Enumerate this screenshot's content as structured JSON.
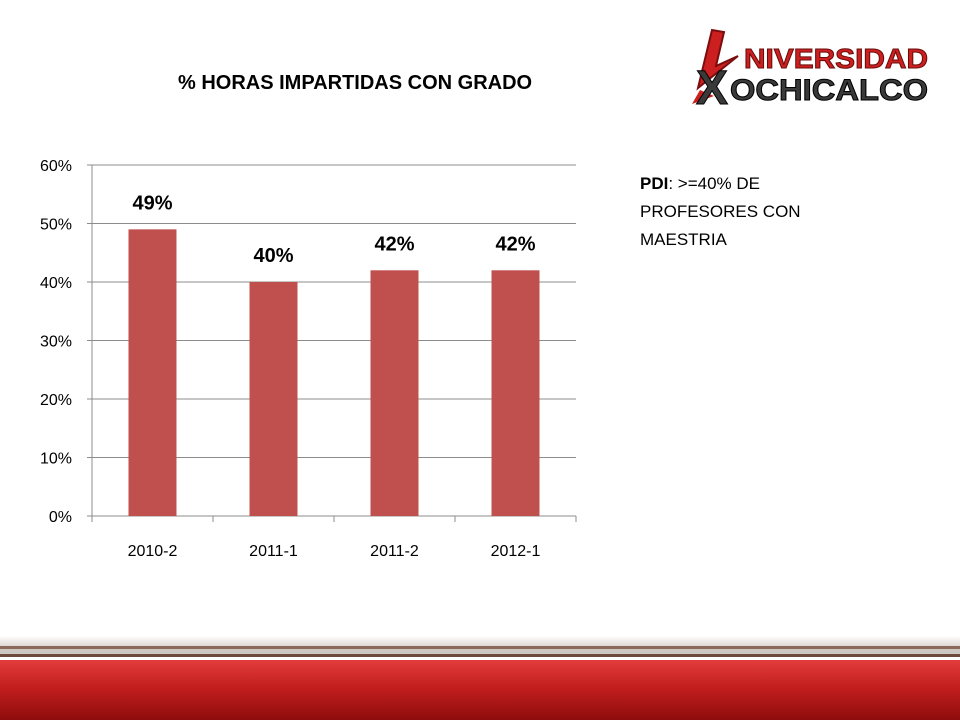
{
  "slide": {
    "title": "% HORAS IMPARTIDAS CON GRADO",
    "note_bold": "PDI",
    "note_rest": ": >=40% DE PROFESORES CON MAESTRIA"
  },
  "logo": {
    "line1": "NIVERSIDAD",
    "line2": "OCHICALCO",
    "letter_x": "X",
    "colors": {
      "red": "#cc1f1f",
      "dark": "#3a3a3a"
    }
  },
  "chart_data": {
    "type": "bar",
    "categories": [
      "2010-2",
      "2011-1",
      "2011-2",
      "2012-1"
    ],
    "values": [
      49,
      40,
      42,
      42
    ],
    "data_labels": [
      "49%",
      "40%",
      "42%",
      "42%"
    ],
    "yticks": [
      "0%",
      "10%",
      "20%",
      "30%",
      "40%",
      "50%",
      "60%"
    ],
    "ylim": [
      0,
      60
    ],
    "grid": true,
    "legend": false,
    "bar_color": "#c0504d"
  }
}
